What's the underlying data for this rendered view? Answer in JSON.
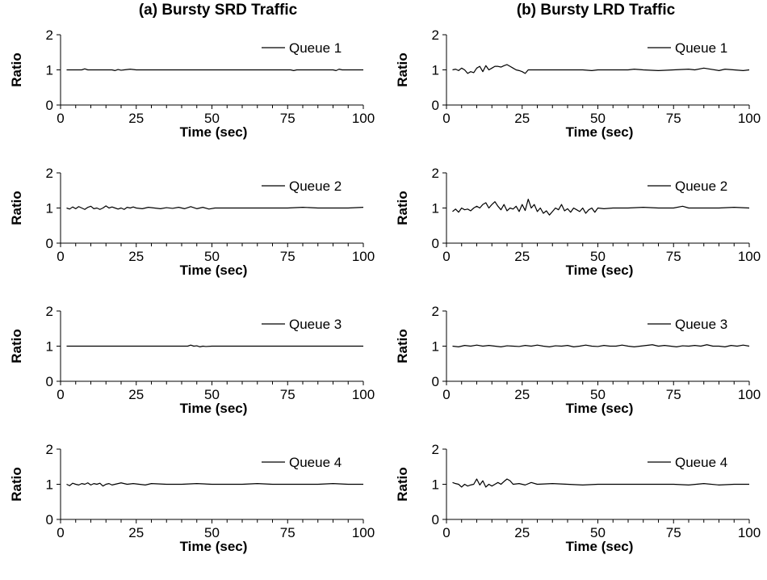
{
  "columns": [
    {
      "title": "(a) Bursty SRD Traffic"
    },
    {
      "title": "(b) Bursty LRD Traffic"
    }
  ],
  "line_color": "#000000",
  "chart_data": [
    {
      "type": "line",
      "column": 0,
      "row": 0,
      "xlabel": "Time (sec)",
      "ylabel": "Ratio",
      "xlim": [
        0,
        100
      ],
      "ylim": [
        0,
        2
      ],
      "xticks": [
        0,
        25,
        50,
        75,
        100
      ],
      "yticks": [
        0,
        1,
        2
      ],
      "grid": false,
      "legend": "top-right",
      "series": [
        {
          "name": "Queue 1",
          "x": [
            2,
            5,
            7,
            8,
            9,
            12,
            15,
            17,
            18,
            19,
            20,
            21,
            23,
            25,
            30,
            40,
            50,
            60,
            70,
            75,
            76,
            77,
            78,
            80,
            85,
            90,
            91,
            92,
            93,
            95,
            100
          ],
          "y": [
            1.0,
            1.0,
            1.0,
            1.03,
            1.0,
            1.0,
            1.0,
            1.0,
            0.98,
            1.01,
            0.99,
            1.0,
            1.02,
            1.0,
            1.0,
            1.0,
            1.0,
            1.0,
            1.0,
            1.0,
            1.0,
            0.98,
            1.0,
            1.0,
            1.0,
            1.0,
            0.98,
            1.02,
            1.0,
            1.0,
            1.0
          ]
        }
      ]
    },
    {
      "type": "line",
      "column": 1,
      "row": 0,
      "xlabel": "Time (sec)",
      "ylabel": "Ratio",
      "xlim": [
        0,
        100
      ],
      "ylim": [
        0,
        2
      ],
      "xticks": [
        0,
        25,
        50,
        75,
        100
      ],
      "yticks": [
        0,
        1,
        2
      ],
      "grid": false,
      "legend": "top-right",
      "series": [
        {
          "name": "Queue 1",
          "x": [
            2,
            3,
            4,
            5,
            6,
            7,
            8,
            9,
            10,
            11,
            12,
            13,
            14,
            15,
            16,
            17,
            18,
            19,
            20,
            21,
            22,
            23,
            24,
            25,
            26,
            27,
            30,
            35,
            40,
            45,
            48,
            50,
            55,
            60,
            62,
            65,
            70,
            75,
            80,
            82,
            85,
            90,
            92,
            95,
            98,
            100
          ],
          "y": [
            1.0,
            1.02,
            0.98,
            1.05,
            1.0,
            0.9,
            0.95,
            0.92,
            1.05,
            1.1,
            0.95,
            1.12,
            1.0,
            1.05,
            1.1,
            1.1,
            1.08,
            1.12,
            1.15,
            1.1,
            1.05,
            1.0,
            0.98,
            0.95,
            0.9,
            1.0,
            1.0,
            1.0,
            1.0,
            1.0,
            0.98,
            1.0,
            1.0,
            1.0,
            1.02,
            1.0,
            0.98,
            1.0,
            1.02,
            1.0,
            1.05,
            0.98,
            1.02,
            1.0,
            0.98,
            1.0
          ]
        }
      ]
    },
    {
      "type": "line",
      "column": 0,
      "row": 1,
      "xlabel": "Time (sec)",
      "ylabel": "Ratio",
      "xlim": [
        0,
        100
      ],
      "ylim": [
        0,
        2
      ],
      "xticks": [
        0,
        25,
        50,
        75,
        100
      ],
      "yticks": [
        0,
        1,
        2
      ],
      "grid": false,
      "legend": "top-right",
      "series": [
        {
          "name": "Queue 2",
          "x": [
            2,
            3,
            4,
            5,
            6,
            7,
            8,
            9,
            10,
            11,
            12,
            13,
            14,
            15,
            16,
            17,
            18,
            19,
            20,
            21,
            22,
            23,
            24,
            25,
            27,
            29,
            31,
            33,
            35,
            37,
            39,
            41,
            43,
            45,
            47,
            49,
            51,
            55,
            60,
            65,
            70,
            75,
            80,
            85,
            90,
            95,
            100
          ],
          "y": [
            1.0,
            0.97,
            1.03,
            0.98,
            1.04,
            1.0,
            0.96,
            1.02,
            1.05,
            0.98,
            1.0,
            0.96,
            1.0,
            1.06,
            1.0,
            1.03,
            1.0,
            0.97,
            1.0,
            0.96,
            1.02,
            1.0,
            1.03,
            1.0,
            0.98,
            1.02,
            1.0,
            0.98,
            1.01,
            0.99,
            1.02,
            0.98,
            1.04,
            0.98,
            1.02,
            0.97,
            1.0,
            1.0,
            1.0,
            1.0,
            1.0,
            1.0,
            1.02,
            1.0,
            1.0,
            1.0,
            1.02
          ]
        }
      ]
    },
    {
      "type": "line",
      "column": 1,
      "row": 1,
      "xlabel": "Time (sec)",
      "ylabel": "Ratio",
      "xlim": [
        0,
        100
      ],
      "ylim": [
        0,
        2
      ],
      "xticks": [
        0,
        25,
        50,
        75,
        100
      ],
      "yticks": [
        0,
        1,
        2
      ],
      "grid": false,
      "legend": "top-right",
      "series": [
        {
          "name": "Queue 2",
          "x": [
            2,
            3,
            4,
            5,
            6,
            7,
            8,
            9,
            10,
            11,
            12,
            13,
            14,
            15,
            16,
            17,
            18,
            19,
            20,
            21,
            22,
            23,
            24,
            25,
            26,
            27,
            28,
            29,
            30,
            31,
            32,
            33,
            34,
            35,
            36,
            37,
            38,
            39,
            40,
            41,
            42,
            43,
            44,
            45,
            46,
            47,
            48,
            49,
            50,
            52,
            55,
            60,
            65,
            70,
            75,
            78,
            80,
            85,
            90,
            95,
            100
          ],
          "y": [
            0.9,
            0.97,
            0.88,
            1.0,
            0.95,
            0.97,
            0.92,
            1.0,
            1.05,
            1.0,
            1.1,
            1.15,
            1.0,
            1.1,
            1.18,
            1.05,
            0.95,
            1.1,
            0.92,
            1.0,
            0.97,
            1.05,
            0.9,
            1.1,
            0.93,
            1.25,
            1.0,
            1.1,
            0.9,
            1.0,
            0.85,
            0.92,
            0.8,
            0.9,
            1.0,
            0.95,
            1.1,
            0.92,
            0.98,
            0.88,
            1.0,
            0.95,
            0.9,
            1.0,
            0.85,
            0.95,
            1.0,
            0.88,
            1.0,
            0.98,
            1.0,
            1.0,
            1.02,
            1.0,
            1.0,
            1.05,
            1.0,
            1.0,
            1.0,
            1.02,
            1.0
          ]
        }
      ]
    },
    {
      "type": "line",
      "column": 0,
      "row": 2,
      "xlabel": "Time (sec)",
      "ylabel": "Ratio",
      "xlim": [
        0,
        100
      ],
      "ylim": [
        0,
        2
      ],
      "xticks": [
        0,
        25,
        50,
        75,
        100
      ],
      "yticks": [
        0,
        1,
        2
      ],
      "grid": false,
      "legend": "top-right",
      "series": [
        {
          "name": "Queue 3",
          "x": [
            2,
            10,
            20,
            30,
            40,
            42,
            43,
            44,
            45,
            46,
            47,
            48,
            50,
            60,
            70,
            80,
            90,
            100
          ],
          "y": [
            1.0,
            1.0,
            1.0,
            1.0,
            1.0,
            1.0,
            1.03,
            1.0,
            1.01,
            0.98,
            1.0,
            0.99,
            1.0,
            1.0,
            1.0,
            1.0,
            1.0,
            1.0
          ]
        }
      ]
    },
    {
      "type": "line",
      "column": 1,
      "row": 2,
      "xlabel": "Time (sec)",
      "ylabel": "Ratio",
      "xlim": [
        0,
        100
      ],
      "ylim": [
        0,
        2
      ],
      "xticks": [
        0,
        25,
        50,
        75,
        100
      ],
      "yticks": [
        0,
        1,
        2
      ],
      "grid": false,
      "legend": "top-right",
      "series": [
        {
          "name": "Queue 3",
          "x": [
            2,
            4,
            6,
            8,
            10,
            12,
            14,
            16,
            18,
            20,
            22,
            24,
            26,
            28,
            30,
            32,
            34,
            36,
            38,
            40,
            42,
            44,
            46,
            48,
            50,
            52,
            54,
            56,
            58,
            60,
            62,
            64,
            66,
            68,
            70,
            72,
            74,
            76,
            78,
            80,
            82,
            84,
            86,
            88,
            90,
            92,
            94,
            96,
            98,
            100
          ],
          "y": [
            1.0,
            0.98,
            1.02,
            1.0,
            1.03,
            1.0,
            1.02,
            1.0,
            0.98,
            1.01,
            1.0,
            0.99,
            1.02,
            1.0,
            1.03,
            1.0,
            0.98,
            1.01,
            1.0,
            1.02,
            0.98,
            1.0,
            1.03,
            1.0,
            0.99,
            1.02,
            1.0,
            1.0,
            1.03,
            1.0,
            0.98,
            1.0,
            1.02,
            1.04,
            1.0,
            1.02,
            1.0,
            0.98,
            1.01,
            1.0,
            1.02,
            1.0,
            1.04,
            1.0,
            1.0,
            0.98,
            1.02,
            1.0,
            1.03,
            1.0
          ]
        }
      ]
    },
    {
      "type": "line",
      "column": 0,
      "row": 3,
      "xlabel": "Time (sec)",
      "ylabel": "Ratio",
      "xlim": [
        0,
        100
      ],
      "ylim": [
        0,
        2
      ],
      "xticks": [
        0,
        25,
        50,
        75,
        100
      ],
      "yticks": [
        0,
        1,
        2
      ],
      "grid": false,
      "legend": "top-right",
      "series": [
        {
          "name": "Queue 4",
          "x": [
            2,
            3,
            4,
            5,
            6,
            7,
            8,
            9,
            10,
            11,
            12,
            13,
            14,
            15,
            16,
            17,
            18,
            19,
            20,
            22,
            24,
            26,
            28,
            30,
            35,
            40,
            45,
            50,
            55,
            60,
            65,
            70,
            75,
            80,
            85,
            90,
            95,
            100
          ],
          "y": [
            1.0,
            0.96,
            1.03,
            1.0,
            0.98,
            1.02,
            1.0,
            1.04,
            0.98,
            1.02,
            1.0,
            1.03,
            0.95,
            1.0,
            1.02,
            0.98,
            1.0,
            1.02,
            1.04,
            1.0,
            1.02,
            1.0,
            0.98,
            1.02,
            1.0,
            1.0,
            1.02,
            1.0,
            1.0,
            1.0,
            1.02,
            1.0,
            1.0,
            1.0,
            1.0,
            1.02,
            1.0,
            1.0
          ]
        }
      ]
    },
    {
      "type": "line",
      "column": 1,
      "row": 3,
      "xlabel": "Time (sec)",
      "ylabel": "Ratio",
      "xlim": [
        0,
        100
      ],
      "ylim": [
        0,
        2
      ],
      "xticks": [
        0,
        25,
        50,
        75,
        100
      ],
      "yticks": [
        0,
        1,
        2
      ],
      "grid": false,
      "legend": "top-right",
      "series": [
        {
          "name": "Queue 4",
          "x": [
            2,
            3,
            4,
            5,
            6,
            7,
            8,
            9,
            10,
            11,
            12,
            13,
            14,
            15,
            16,
            17,
            18,
            19,
            20,
            21,
            22,
            24,
            26,
            28,
            30,
            35,
            40,
            45,
            50,
            55,
            60,
            65,
            70,
            75,
            80,
            85,
            90,
            95,
            100
          ],
          "y": [
            1.05,
            1.02,
            1.0,
            0.92,
            1.0,
            0.95,
            0.98,
            1.0,
            1.15,
            0.98,
            1.1,
            0.92,
            1.0,
            0.95,
            1.0,
            1.05,
            1.0,
            1.08,
            1.15,
            1.1,
            1.0,
            1.02,
            0.98,
            1.05,
            1.0,
            1.02,
            1.0,
            0.98,
            1.0,
            1.0,
            1.0,
            1.0,
            1.0,
            1.0,
            0.98,
            1.02,
            0.98,
            1.0,
            1.0
          ]
        }
      ]
    }
  ]
}
